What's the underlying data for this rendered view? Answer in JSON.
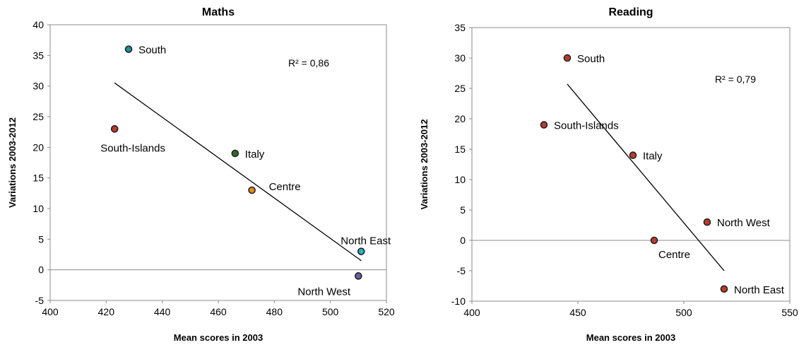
{
  "chart_data": [
    {
      "type": "scatter",
      "title": "Maths",
      "xlabel": "Mean scores in 2003",
      "ylabel": "Variations 2003-2012",
      "xlim": [
        400,
        520
      ],
      "ylim": [
        -5,
        40
      ],
      "xticks": [
        400,
        420,
        440,
        460,
        480,
        500,
        520
      ],
      "yticks": [
        -5,
        0,
        5,
        10,
        15,
        20,
        25,
        30,
        35,
        40
      ],
      "r2_label": "R² = 0,86",
      "trendline": [
        [
          423,
          30.5
        ],
        [
          511,
          1.5
        ]
      ],
      "points": [
        {
          "label": "South",
          "x": 428,
          "y": 36,
          "color": "#1f8f9f"
        },
        {
          "label": "South-Islands",
          "x": 423,
          "y": 23,
          "color": "#c0392b"
        },
        {
          "label": "Italy",
          "x": 466,
          "y": 19,
          "color": "#2e6b30"
        },
        {
          "label": "Centre",
          "x": 472,
          "y": 13,
          "color": "#e58a1f"
        },
        {
          "label": "North East",
          "x": 511,
          "y": 3,
          "color": "#27b3c7"
        },
        {
          "label": "North West",
          "x": 510,
          "y": -1,
          "color": "#6a5ea8"
        }
      ],
      "grid": false
    },
    {
      "type": "scatter",
      "title": "Reading",
      "xlabel": "Mean scores in 2003",
      "ylabel": "Variations 2003-2012",
      "xlim": [
        400,
        550
      ],
      "ylim": [
        -10,
        35
      ],
      "xticks": [
        400,
        450,
        500,
        550
      ],
      "yticks": [
        -10,
        -5,
        0,
        5,
        10,
        15,
        20,
        25,
        30,
        35
      ],
      "r2_label": "R² = 0,79",
      "trendline": [
        [
          445,
          25.7
        ],
        [
          519,
          -5
        ]
      ],
      "points": [
        {
          "label": "South",
          "x": 445,
          "y": 30,
          "color": "#c0392b"
        },
        {
          "label": "South-Islands",
          "x": 434,
          "y": 19,
          "color": "#c0392b"
        },
        {
          "label": "Italy",
          "x": 476,
          "y": 14,
          "color": "#c0392b"
        },
        {
          "label": "North West",
          "x": 511,
          "y": 3,
          "color": "#c0392b"
        },
        {
          "label": "Centre",
          "x": 486,
          "y": 0,
          "color": "#c0392b"
        },
        {
          "label": "North East",
          "x": 519,
          "y": -8,
          "color": "#c0392b"
        }
      ],
      "grid": false
    }
  ]
}
